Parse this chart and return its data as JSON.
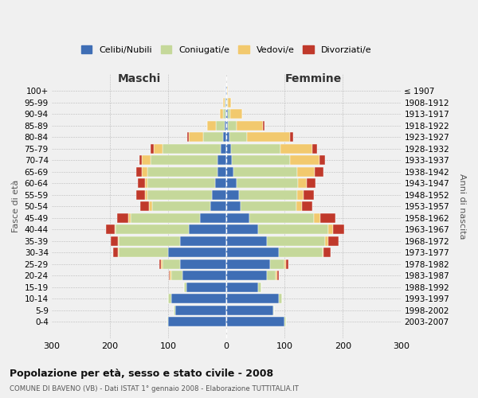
{
  "age_groups": [
    "0-4",
    "5-9",
    "10-14",
    "15-19",
    "20-24",
    "25-29",
    "30-34",
    "35-39",
    "40-44",
    "45-49",
    "50-54",
    "55-59",
    "60-64",
    "65-69",
    "70-74",
    "75-79",
    "80-84",
    "85-89",
    "90-94",
    "95-99",
    "100+"
  ],
  "birth_years": [
    "2003-2007",
    "1998-2002",
    "1993-1997",
    "1988-1992",
    "1983-1987",
    "1978-1982",
    "1973-1977",
    "1968-1972",
    "1963-1967",
    "1958-1962",
    "1953-1957",
    "1948-1952",
    "1943-1947",
    "1938-1942",
    "1933-1937",
    "1928-1932",
    "1923-1927",
    "1918-1922",
    "1913-1917",
    "1908-1912",
    "≤ 1907"
  ],
  "male": {
    "celibi": [
      100,
      88,
      95,
      68,
      75,
      80,
      100,
      80,
      65,
      45,
      28,
      25,
      20,
      15,
      15,
      10,
      5,
      3,
      1,
      1,
      1
    ],
    "coniugati": [
      2,
      2,
      5,
      5,
      20,
      30,
      85,
      105,
      125,
      120,
      100,
      110,
      115,
      120,
      115,
      100,
      35,
      15,
      5,
      2,
      0
    ],
    "vedovi": [
      0,
      0,
      0,
      0,
      2,
      2,
      2,
      2,
      2,
      3,
      5,
      5,
      5,
      10,
      15,
      15,
      25,
      15,
      5,
      2,
      1
    ],
    "divorziati": [
      0,
      0,
      0,
      0,
      2,
      3,
      8,
      12,
      15,
      20,
      15,
      15,
      12,
      10,
      5,
      5,
      2,
      0,
      0,
      0,
      0
    ]
  },
  "female": {
    "nubili": [
      100,
      80,
      90,
      55,
      70,
      75,
      90,
      70,
      55,
      40,
      25,
      22,
      18,
      12,
      10,
      8,
      5,
      3,
      2,
      1,
      1
    ],
    "coniugate": [
      2,
      2,
      5,
      5,
      15,
      25,
      75,
      100,
      120,
      110,
      95,
      100,
      105,
      110,
      100,
      85,
      30,
      15,
      5,
      2,
      0
    ],
    "vedove": [
      0,
      0,
      0,
      0,
      2,
      2,
      2,
      5,
      8,
      12,
      10,
      10,
      15,
      30,
      50,
      55,
      75,
      45,
      20,
      5,
      1
    ],
    "divorziate": [
      0,
      0,
      0,
      0,
      3,
      5,
      12,
      18,
      20,
      25,
      18,
      18,
      15,
      15,
      10,
      8,
      5,
      3,
      0,
      0,
      0
    ]
  },
  "colors": {
    "celibi": "#3F6EB5",
    "coniugati": "#C5D89A",
    "vedovi": "#F2C96E",
    "divorziati": "#C0392B"
  },
  "xlim": 300,
  "title": "Popolazione per età, sesso e stato civile - 2008",
  "subtitle": "COMUNE DI BAVENO (VB) - Dati ISTAT 1° gennaio 2008 - Elaborazione TUTTITALIA.IT",
  "legend_labels": [
    "Celibi/Nubili",
    "Coniugati/e",
    "Vedovi/e",
    "Divorziati/e"
  ],
  "bg_color": "#f0f0f0",
  "grid_color": "#bbbbbb"
}
